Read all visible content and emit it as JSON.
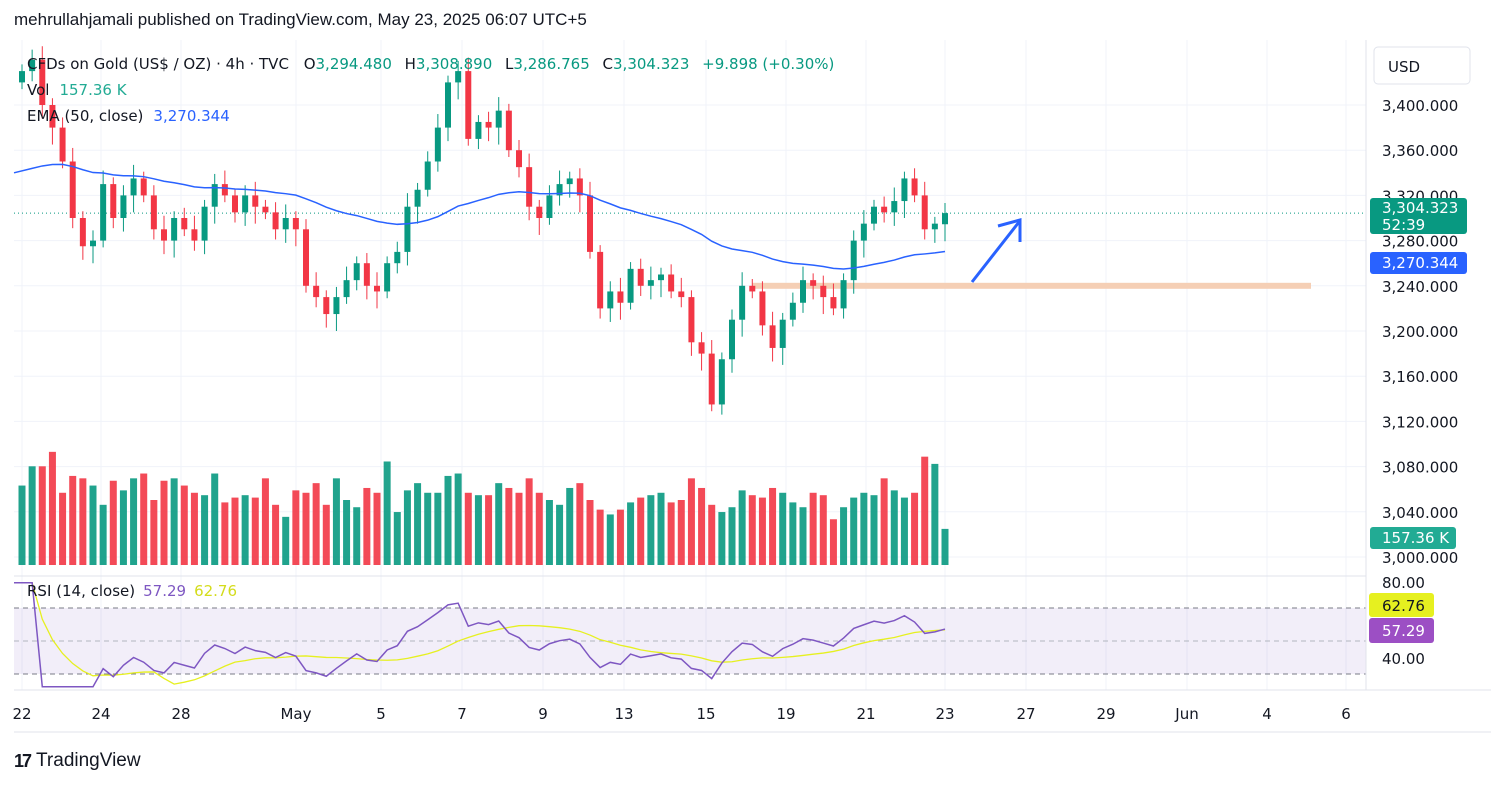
{
  "header": {
    "text": "mehrullahjamali published on TradingView.com, May 23, 2025 06:07 UTC+5"
  },
  "legend": {
    "symbol": "CFDs on Gold (US$ / OZ) · 4h · TVC",
    "o_label": "O",
    "o": "3,294.480",
    "h_label": "H",
    "h": "3,308.890",
    "l_label": "L",
    "l": "3,286.765",
    "c_label": "C",
    "c": "3,304.323",
    "change": "+9.898 (+0.30%)",
    "vol_label": "Vol",
    "vol": "157.36 K",
    "ema_label": "EMA (50, close)",
    "ema": "3,270.344",
    "rsi_label": "RSI (14, close)",
    "rsi": "57.29",
    "rsi_ma": "62.76"
  },
  "price_axis": {
    "currency": "USD",
    "ticks": [
      "3,400.000",
      "3,360.000",
      "3,320.000",
      "3,280.000",
      "3,240.000",
      "3,200.000",
      "3,160.000",
      "3,120.000",
      "3,080.000",
      "3,040.000",
      "3,000.000"
    ],
    "tick_values": [
      3400,
      3360,
      3320,
      3280,
      3240,
      3200,
      3160,
      3120,
      3080,
      3040,
      3000
    ],
    "last_price": "3,304.323",
    "countdown": "52:39",
    "ema_tag": "3,270.344",
    "vol_tag": "157.36 K"
  },
  "rsi_axis": {
    "ticks": [
      "80.00",
      "40.00"
    ],
    "rsi_tag": "57.29",
    "rsi_ma_tag": "62.76"
  },
  "time_axis": {
    "labels": [
      "22",
      "24",
      "28",
      "May",
      "5",
      "7",
      "9",
      "13",
      "15",
      "19",
      "21",
      "23",
      "27",
      "29",
      "Jun",
      "4",
      "6"
    ]
  },
  "colors": {
    "up": "#089981",
    "down": "#f23645",
    "ema": "#2962ff",
    "rsi": "#7e57c2",
    "rsi_ma": "#e6f020",
    "zone": "#f5cfb5",
    "arrow": "#2962ff"
  },
  "footer": {
    "brand": "TradingView"
  },
  "chart_data": {
    "type": "candlestick",
    "symbol": "CFDs on Gold (US$ / OZ)",
    "interval": "4h",
    "ylim": [
      3000,
      3440
    ],
    "closes": [
      3430,
      3440,
      3400,
      3380,
      3350,
      3300,
      3275,
      3280,
      3330,
      3300,
      3320,
      3335,
      3320,
      3290,
      3280,
      3300,
      3290,
      3280,
      3310,
      3330,
      3320,
      3305,
      3320,
      3310,
      3305,
      3290,
      3300,
      3290,
      3240,
      3230,
      3215,
      3230,
      3245,
      3260,
      3240,
      3235,
      3260,
      3270,
      3310,
      3325,
      3350,
      3380,
      3420,
      3430,
      3370,
      3385,
      3380,
      3395,
      3360,
      3345,
      3310,
      3300,
      3320,
      3330,
      3335,
      3320,
      3270,
      3220,
      3235,
      3225,
      3255,
      3240,
      3245,
      3250,
      3235,
      3230,
      3190,
      3180,
      3135,
      3175,
      3210,
      3240,
      3235,
      3205,
      3185,
      3210,
      3225,
      3245,
      3240,
      3230,
      3220,
      3245,
      3280,
      3295,
      3310,
      3305,
      3315,
      3335,
      3320,
      3290,
      3295,
      3304.323
    ],
    "volumes_k": [
      330,
      410,
      410,
      470,
      300,
      370,
      360,
      330,
      250,
      350,
      310,
      360,
      380,
      270,
      350,
      360,
      330,
      300,
      290,
      380,
      260,
      280,
      290,
      280,
      360,
      250,
      200,
      310,
      300,
      340,
      250,
      360,
      270,
      240,
      320,
      300,
      430,
      220,
      310,
      340,
      300,
      300,
      370,
      380,
      300,
      290,
      290,
      340,
      320,
      300,
      360,
      300,
      270,
      250,
      320,
      340,
      270,
      230,
      210,
      230,
      260,
      280,
      290,
      300,
      260,
      270,
      360,
      320,
      250,
      220,
      240,
      310,
      290,
      280,
      320,
      300,
      260,
      240,
      300,
      290,
      190,
      240,
      280,
      300,
      290,
      360,
      310,
      280,
      300,
      450,
      420,
      150
    ],
    "support_zone": 3240,
    "ema_period": 50,
    "rsi_period": 14,
    "rsi_levels": [
      70,
      50,
      30
    ],
    "rsi_range": [
      20,
      90
    ]
  }
}
